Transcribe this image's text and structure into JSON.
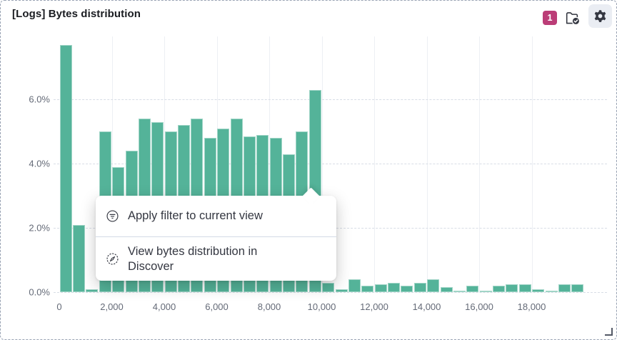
{
  "panel": {
    "title": "[Logs] Bytes distribution",
    "controls": {
      "badge_count": "1",
      "folder_icon": "folder-check-icon",
      "gear_icon": "gear-icon"
    }
  },
  "chart_data": {
    "type": "bar",
    "title": "[Logs] Bytes distribution",
    "xlabel": "",
    "ylabel": "",
    "bucket_size": 500,
    "x": [
      0,
      500,
      1000,
      1500,
      2000,
      2500,
      3000,
      3500,
      4000,
      4500,
      5000,
      5500,
      6000,
      6500,
      7000,
      7500,
      8000,
      8500,
      9000,
      9500,
      10000,
      10500,
      11000,
      11500,
      12000,
      12500,
      13000,
      13500,
      14000,
      14500,
      15000,
      15500,
      16000,
      16500,
      17000,
      17500,
      18000,
      18500,
      19000,
      19500
    ],
    "values_percent": [
      7.7,
      2.1,
      0.1,
      5.0,
      3.9,
      4.4,
      5.4,
      5.3,
      5.0,
      5.2,
      5.4,
      4.8,
      5.1,
      5.4,
      4.85,
      4.9,
      4.8,
      4.3,
      5.0,
      6.3,
      0.3,
      0.1,
      0.4,
      0.2,
      0.25,
      0.3,
      0.2,
      0.3,
      0.4,
      0.15,
      0.05,
      0.2,
      0.05,
      0.2,
      0.25,
      0.25,
      0.1,
      0.05,
      0.25,
      0.25
    ],
    "x_tick_values": [
      0,
      2000,
      4000,
      6000,
      8000,
      10000,
      12000,
      14000,
      16000,
      18000
    ],
    "x_tick_labels": [
      "0",
      "2,000",
      "4,000",
      "6,000",
      "8,000",
      "10,000",
      "12,000",
      "14,000",
      "16,000",
      "18,000"
    ],
    "y_tick_values": [
      0,
      2,
      4,
      6
    ],
    "y_tick_labels": [
      "0.0%",
      "2.0%",
      "4.0%",
      "6.0%"
    ],
    "xlim": [
      0,
      20000
    ],
    "ylim": [
      0,
      7.9
    ],
    "grid": true,
    "legend": false,
    "bar_color": "#54B399"
  },
  "context_menu": {
    "items": [
      {
        "icon": "filter-icon",
        "label": "Apply filter to current view"
      },
      {
        "icon": "compass-icon",
        "label": "View bytes distribution in Discover"
      }
    ]
  }
}
